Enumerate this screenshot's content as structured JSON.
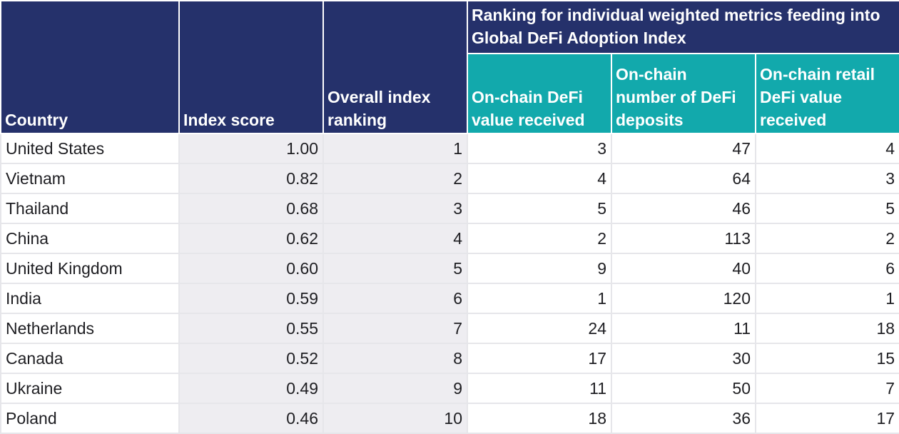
{
  "chart_data": {
    "type": "table",
    "group_header": "Ranking for individual weighted metrics feeding into Global DeFi Adoption Index",
    "columns": [
      "Country",
      "Index score",
      "Overall index ranking",
      "On-chain DeFi value received",
      "On-chain number of DeFi deposits",
      "On-chain retail DeFi value received"
    ],
    "rows": [
      [
        "United States",
        "1.00",
        "1",
        "3",
        "47",
        "4"
      ],
      [
        "Vietnam",
        "0.82",
        "2",
        "4",
        "64",
        "3"
      ],
      [
        "Thailand",
        "0.68",
        "3",
        "5",
        "46",
        "5"
      ],
      [
        "China",
        "0.62",
        "4",
        "2",
        "113",
        "2"
      ],
      [
        "United Kingdom",
        "0.60",
        "5",
        "9",
        "40",
        "6"
      ],
      [
        "India",
        "0.59",
        "6",
        "1",
        "120",
        "1"
      ],
      [
        "Netherlands",
        "0.55",
        "7",
        "24",
        "11",
        "18"
      ],
      [
        "Canada",
        "0.52",
        "8",
        "17",
        "30",
        "15"
      ],
      [
        "Ukraine",
        "0.49",
        "9",
        "11",
        "50",
        "7"
      ],
      [
        "Poland",
        "0.46",
        "10",
        "18",
        "36",
        "17"
      ]
    ]
  },
  "colors": {
    "header_navy": "#25316b",
    "header_teal": "#12a9ac",
    "shaded_cell": "#eeedf1"
  }
}
